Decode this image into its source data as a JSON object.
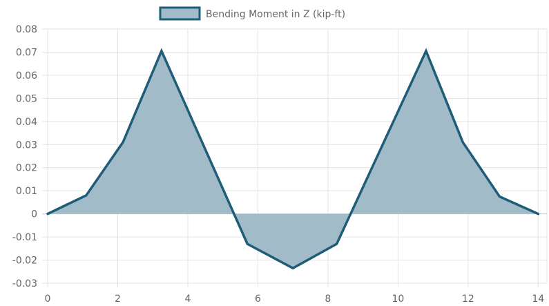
{
  "chart_data": {
    "type": "area",
    "legend": {
      "label": "Bending Moment in Z (kip-ft)",
      "placement": "top-center"
    },
    "series": [
      {
        "name": "Bending Moment in Z (kip-ft)",
        "x": [
          0,
          1.1,
          2.15,
          3.25,
          5.7,
          7.0,
          8.25,
          10.8,
          11.85,
          12.9,
          14.0
        ],
        "y": [
          0,
          0.008,
          0.031,
          0.0705,
          -0.013,
          -0.0235,
          -0.013,
          0.0705,
          0.031,
          0.0075,
          0
        ]
      }
    ],
    "x_ticks": [
      "0",
      "2",
      "4",
      "6",
      "8",
      "10",
      "12",
      "14"
    ],
    "x_tick_values": [
      0,
      2,
      4,
      6,
      8,
      10,
      12,
      14
    ],
    "y_ticks": [
      "0.08",
      "0.07",
      "0.06",
      "0.05",
      "0.04",
      "0.03",
      "0.02",
      "0.01",
      "0",
      "-0.01",
      "-0.02",
      "-0.03"
    ],
    "y_tick_values": [
      0.08,
      0.07,
      0.06,
      0.05,
      0.04,
      0.03,
      0.02,
      0.01,
      0,
      -0.01,
      -0.02,
      -0.03
    ],
    "xlim": [
      0,
      14.25
    ],
    "ylim": [
      -0.03,
      0.08
    ],
    "grid": true,
    "colors": {
      "line": "#1f5c78",
      "fill": "#a1bcc8",
      "grid": "#e4e4e4",
      "zero_line": "#c8c8c8",
      "text": "#666666"
    }
  }
}
